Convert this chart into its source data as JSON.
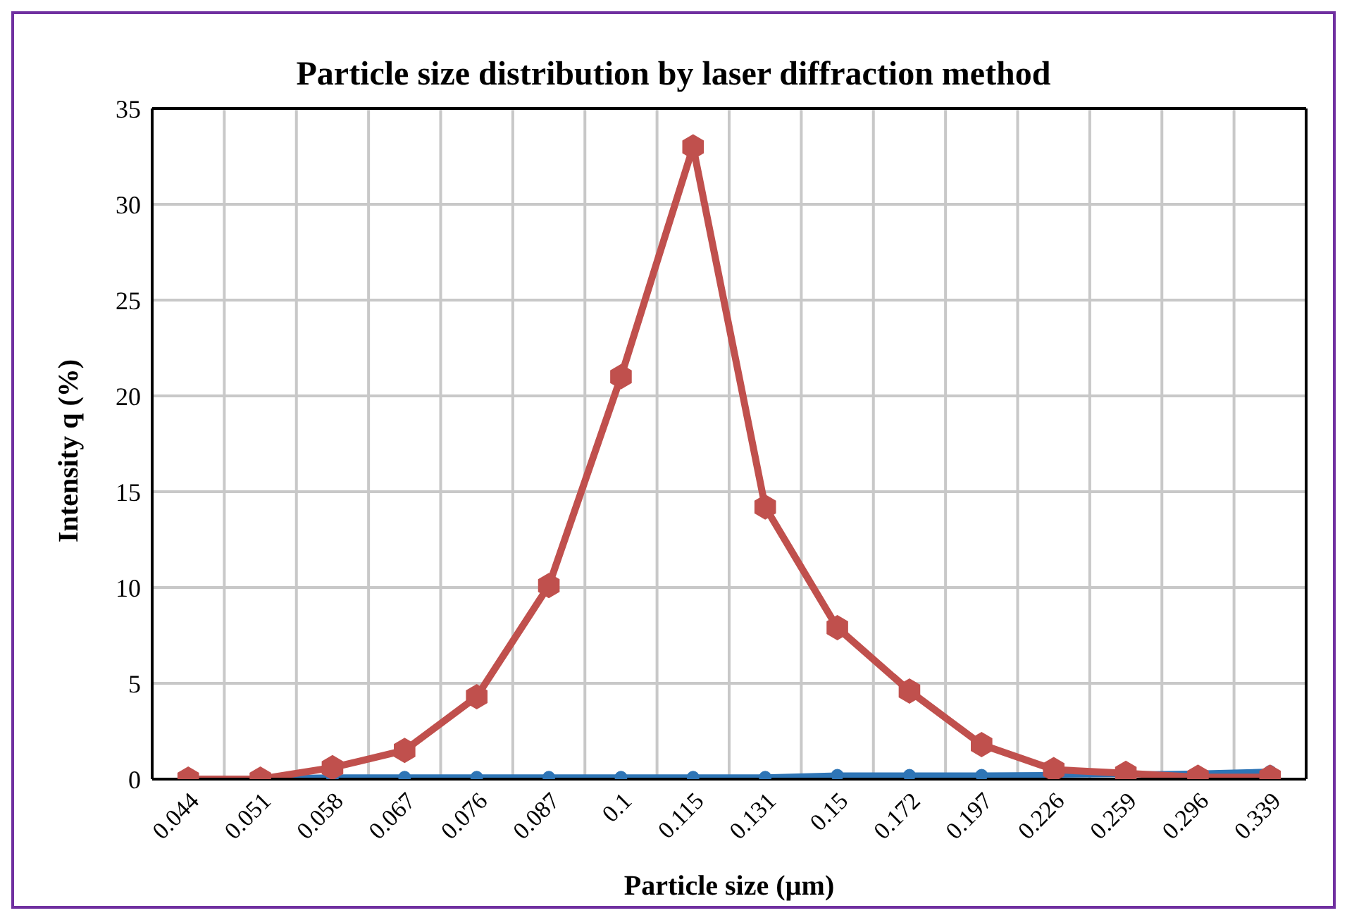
{
  "chart_data": {
    "type": "line",
    "title": "Particle size distribution by laser diffraction method",
    "xlabel": "Particle size (µm)",
    "ylabel": "Intensity q (%)",
    "categories": [
      "0.044",
      "0.051",
      "0.058",
      "0.067",
      "0.076",
      "0.087",
      "0.1",
      "0.115",
      "0.131",
      "0.15",
      "0.172",
      "0.197",
      "0.226",
      "0.259",
      "0.296",
      "0.339"
    ],
    "series": [
      {
        "color": "#2e75b6",
        "marker": "circle",
        "values": [
          null,
          0.05,
          0.1,
          0.1,
          0.1,
          0.1,
          0.1,
          0.1,
          0.1,
          0.2,
          0.2,
          0.2,
          null,
          0.25,
          0.3,
          0.4
        ]
      },
      {
        "color": "#c0504d",
        "marker": "diamond",
        "values": [
          0,
          0,
          0.6,
          1.5,
          4.3,
          10.1,
          21,
          33,
          14.2,
          7.9,
          4.6,
          1.8,
          0.5,
          0.3,
          0.1,
          0.1
        ]
      }
    ],
    "ylim": [
      0,
      35
    ],
    "yticks": [
      0,
      5,
      10,
      15,
      20,
      25,
      30,
      35
    ],
    "grid": true,
    "line_style": "solid"
  }
}
